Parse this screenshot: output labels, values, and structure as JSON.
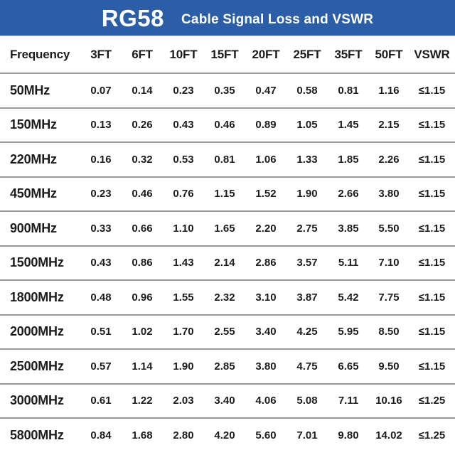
{
  "header": {
    "title": "RG58",
    "subtitle": "Cable Signal Loss and VSWR",
    "background_color": "#2b5ea7",
    "text_color": "#ffffff"
  },
  "table": {
    "columns": [
      "Frequency",
      "3FT",
      "6FT",
      "10FT",
      "15FT",
      "20FT",
      "25FT",
      "35FT",
      "50FT",
      "VSWR"
    ],
    "rows": [
      {
        "frequency": "50MHz",
        "values": [
          "0.07",
          "0.14",
          "0.23",
          "0.35",
          "0.47",
          "0.58",
          "0.81",
          "1.16",
          "≤1.15"
        ]
      },
      {
        "frequency": "150MHz",
        "values": [
          "0.13",
          "0.26",
          "0.43",
          "0.46",
          "0.89",
          "1.05",
          "1.45",
          "2.15",
          "≤1.15"
        ]
      },
      {
        "frequency": "220MHz",
        "values": [
          "0.16",
          "0.32",
          "0.53",
          "0.81",
          "1.06",
          "1.33",
          "1.85",
          "2.26",
          "≤1.15"
        ]
      },
      {
        "frequency": "450MHz",
        "values": [
          "0.23",
          "0.46",
          "0.76",
          "1.15",
          "1.52",
          "1.90",
          "2.66",
          "3.80",
          "≤1.15"
        ]
      },
      {
        "frequency": "900MHz",
        "values": [
          "0.33",
          "0.66",
          "1.10",
          "1.65",
          "2.20",
          "2.75",
          "3.85",
          "5.50",
          "≤1.15"
        ]
      },
      {
        "frequency": "1500MHz",
        "values": [
          "0.43",
          "0.86",
          "1.43",
          "2.14",
          "2.86",
          "3.57",
          "5.11",
          "7.10",
          "≤1.15"
        ]
      },
      {
        "frequency": "1800MHz",
        "values": [
          "0.48",
          "0.96",
          "1.55",
          "2.32",
          "3.10",
          "3.87",
          "5.42",
          "7.75",
          "≤1.15"
        ]
      },
      {
        "frequency": "2000MHz",
        "values": [
          "0.51",
          "1.02",
          "1.70",
          "2.55",
          "3.40",
          "4.25",
          "5.95",
          "8.50",
          "≤1.15"
        ]
      },
      {
        "frequency": "2500MHz",
        "values": [
          "0.57",
          "1.14",
          "1.90",
          "2.85",
          "3.80",
          "4.75",
          "6.65",
          "9.50",
          "≤1.15"
        ]
      },
      {
        "frequency": "3000MHz",
        "values": [
          "0.61",
          "1.22",
          "2.03",
          "3.40",
          "4.06",
          "5.08",
          "7.11",
          "10.16",
          "≤1.25"
        ]
      },
      {
        "frequency": "5800MHz",
        "values": [
          "0.84",
          "1.68",
          "2.80",
          "4.20",
          "5.60",
          "7.01",
          "9.80",
          "14.02",
          "≤1.25"
        ]
      }
    ]
  }
}
